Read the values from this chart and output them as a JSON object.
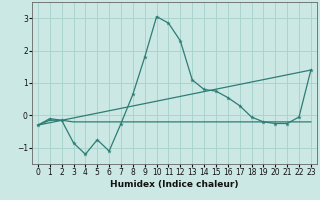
{
  "xlabel": "Humidex (Indice chaleur)",
  "line1_x": [
    0,
    1,
    2,
    3,
    4,
    5,
    6,
    7,
    8,
    9,
    10,
    11,
    12,
    13,
    14,
    15,
    16,
    17,
    18,
    19,
    20,
    21,
    22,
    23
  ],
  "line1_y": [
    -0.3,
    -0.1,
    -0.15,
    -0.85,
    -1.2,
    -0.75,
    -1.1,
    -0.25,
    0.65,
    1.8,
    3.05,
    2.85,
    2.3,
    1.1,
    0.8,
    0.75,
    0.55,
    0.3,
    -0.05,
    -0.2,
    -0.25,
    -0.25,
    -0.05,
    1.4
  ],
  "line2_x": [
    0,
    23
  ],
  "line2_y": [
    -0.3,
    1.4
  ],
  "line3_x": [
    0,
    1,
    2,
    3,
    4,
    5,
    6,
    7,
    8,
    9,
    10,
    11,
    12,
    13,
    14,
    15,
    16,
    17,
    18,
    19,
    20,
    21,
    22,
    23
  ],
  "line3_y": [
    -0.3,
    -0.15,
    -0.15,
    -0.2,
    -0.2,
    -0.2,
    -0.2,
    -0.2,
    -0.2,
    -0.2,
    -0.2,
    -0.2,
    -0.2,
    -0.2,
    -0.2,
    -0.2,
    -0.2,
    -0.2,
    -0.2,
    -0.2,
    -0.2,
    -0.2,
    -0.2,
    -0.2
  ],
  "line_color": "#2d7d74",
  "bg_color": "#cce8e4",
  "grid_color": "#aad4cf",
  "xlim": [
    -0.5,
    23.5
  ],
  "ylim": [
    -1.5,
    3.5
  ],
  "yticks": [
    -1,
    0,
    1,
    2,
    3
  ],
  "xticks": [
    0,
    1,
    2,
    3,
    4,
    5,
    6,
    7,
    8,
    9,
    10,
    11,
    12,
    13,
    14,
    15,
    16,
    17,
    18,
    19,
    20,
    21,
    22,
    23
  ]
}
